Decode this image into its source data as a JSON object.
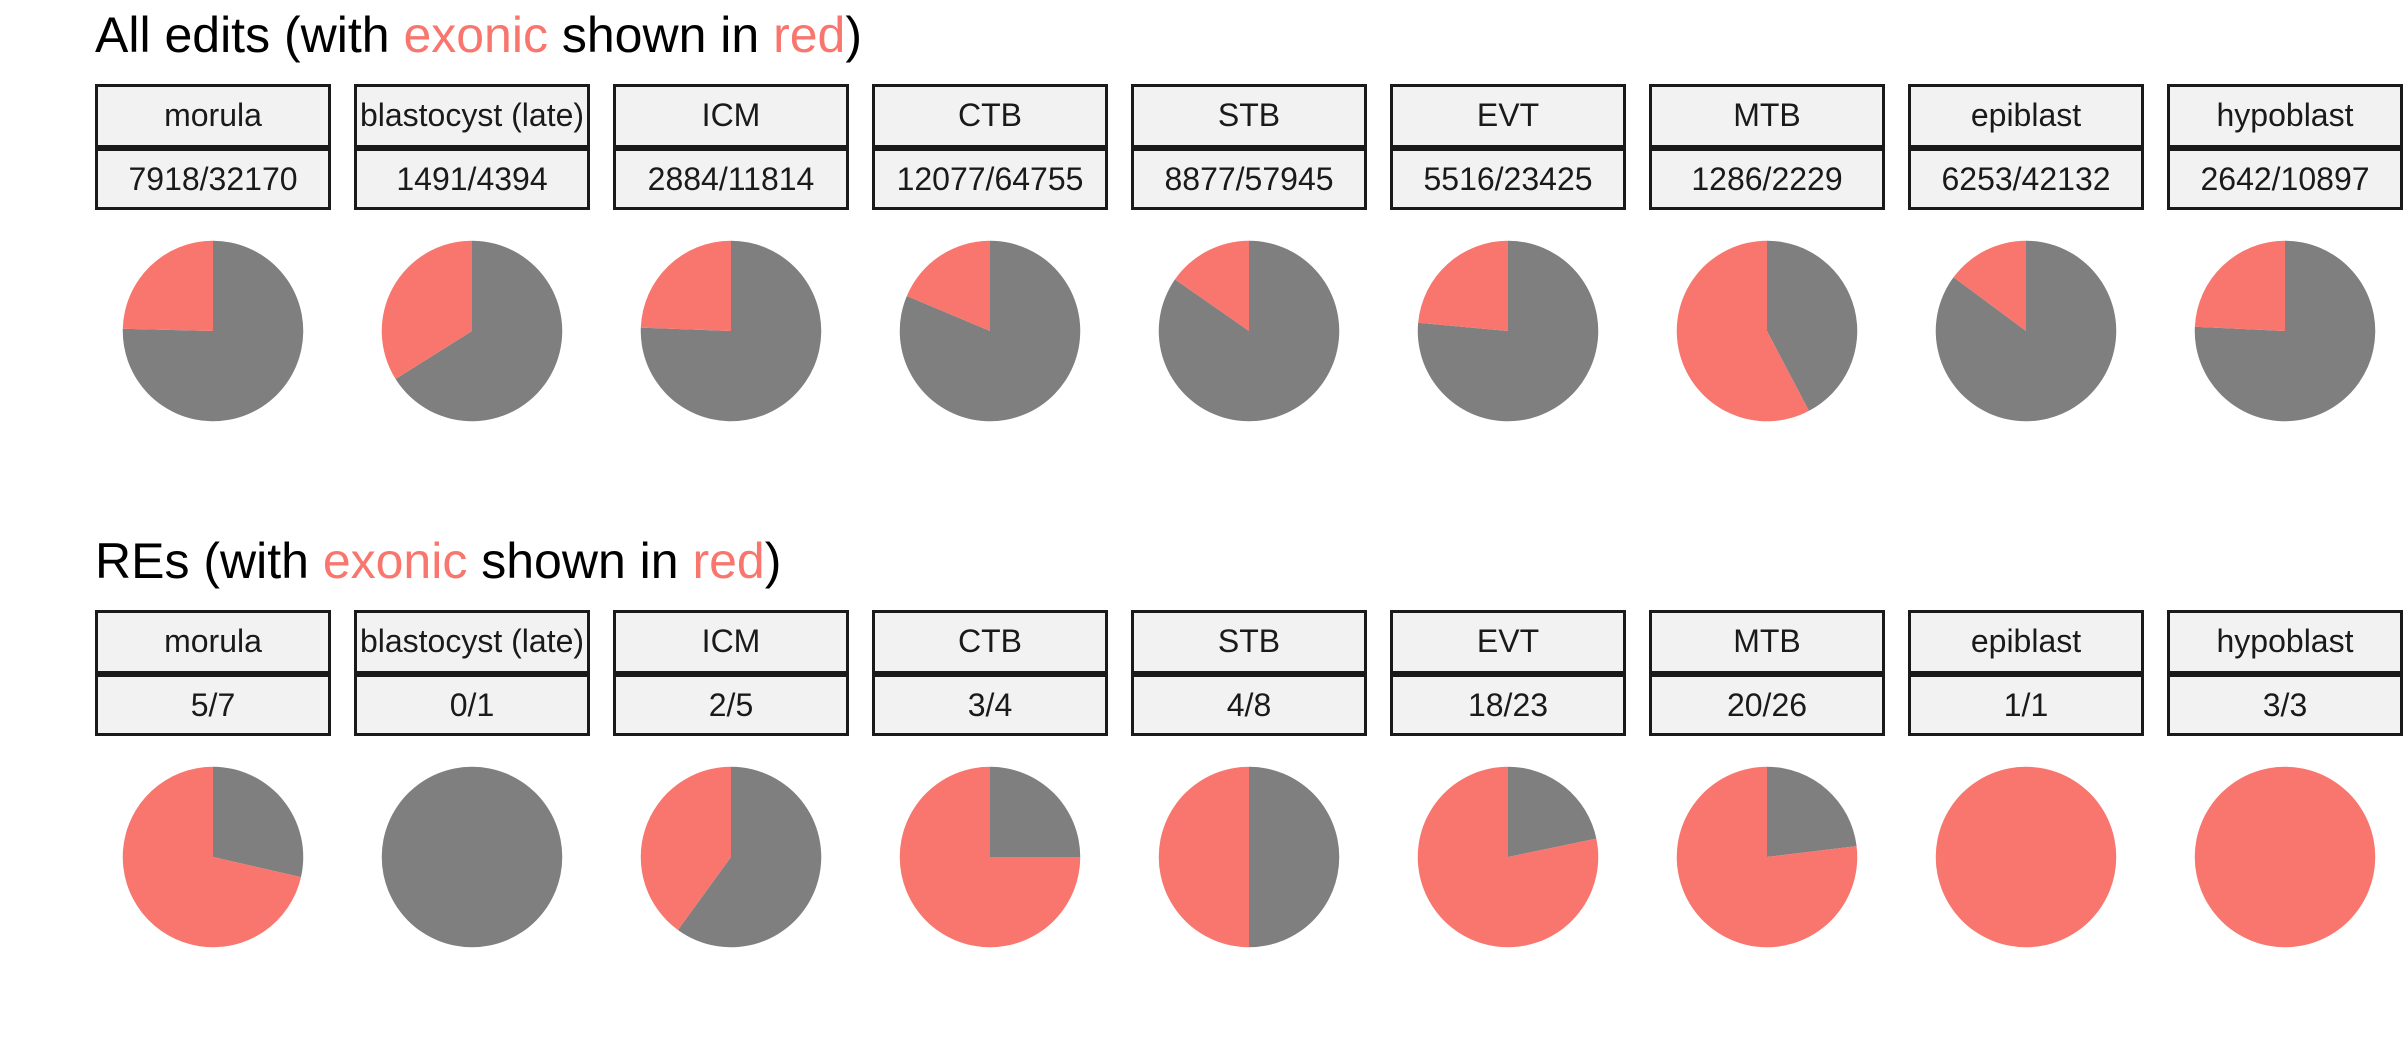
{
  "colors": {
    "exonic": "#F8766D",
    "other": "#7F7F7F"
  },
  "panels": [
    {
      "title_parts": [
        "All edits (with ",
        "exonic",
        " shown in ",
        "red",
        ")"
      ],
      "chart_data": {
        "type": "pie",
        "facets": [
          {
            "label": "morula",
            "value_label": "7918/32170",
            "exonic": 7918,
            "total": 32170
          },
          {
            "label": "blastocyst (late)",
            "value_label": "1491/4394",
            "exonic": 1491,
            "total": 4394
          },
          {
            "label": "ICM",
            "value_label": "2884/11814",
            "exonic": 2884,
            "total": 11814
          },
          {
            "label": "CTB",
            "value_label": "12077/64755",
            "exonic": 12077,
            "total": 64755
          },
          {
            "label": "STB",
            "value_label": "8877/57945",
            "exonic": 8877,
            "total": 57945
          },
          {
            "label": "EVT",
            "value_label": "5516/23425",
            "exonic": 5516,
            "total": 23425
          },
          {
            "label": "MTB",
            "value_label": "1286/2229",
            "exonic": 1286,
            "total": 2229
          },
          {
            "label": "epiblast",
            "value_label": "6253/42132",
            "exonic": 6253,
            "total": 42132
          },
          {
            "label": "hypoblast",
            "value_label": "2642/10897",
            "exonic": 2642,
            "total": 10897
          }
        ]
      }
    },
    {
      "title_parts": [
        "REs (with ",
        "exonic",
        " shown in ",
        "red",
        ")"
      ],
      "chart_data": {
        "type": "pie",
        "facets": [
          {
            "label": "morula",
            "value_label": "5/7",
            "exonic": 5,
            "total": 7
          },
          {
            "label": "blastocyst (late)",
            "value_label": "0/1",
            "exonic": 0,
            "total": 1
          },
          {
            "label": "ICM",
            "value_label": "2/5",
            "exonic": 2,
            "total": 5
          },
          {
            "label": "CTB",
            "value_label": "3/4",
            "exonic": 3,
            "total": 4
          },
          {
            "label": "STB",
            "value_label": "4/8",
            "exonic": 4,
            "total": 8
          },
          {
            "label": "EVT",
            "value_label": "18/23",
            "exonic": 18,
            "total": 23
          },
          {
            "label": "MTB",
            "value_label": "20/26",
            "exonic": 20,
            "total": 26
          },
          {
            "label": "epiblast",
            "value_label": "1/1",
            "exonic": 1,
            "total": 1
          },
          {
            "label": "hypoblast",
            "value_label": "3/3",
            "exonic": 3,
            "total": 3
          }
        ]
      }
    }
  ]
}
